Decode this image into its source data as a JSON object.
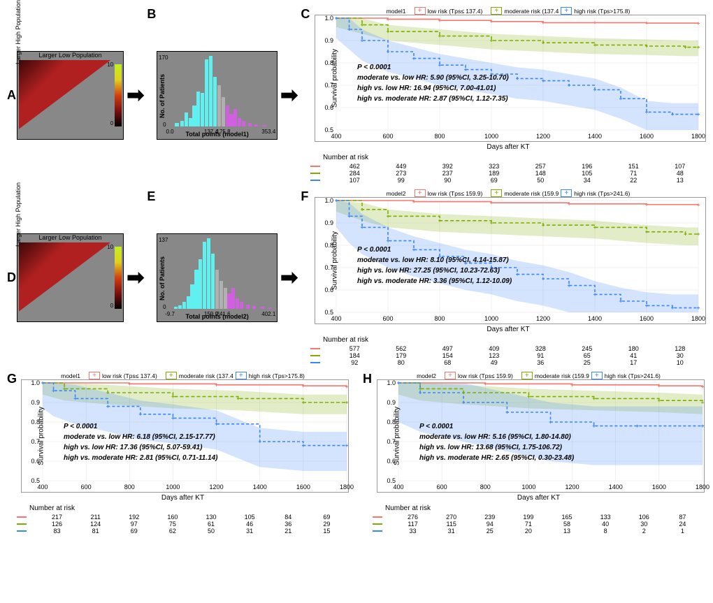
{
  "colors": {
    "low": "#f8766d",
    "moderate": "#7cae00",
    "high": "#3a86ff",
    "hist_low": "#60f0f0",
    "hist_mod": "#b0b0b0",
    "hist_high": "#d060e0",
    "heatmap_bg": "#888888",
    "triangle_fill": "#b02020",
    "grid": "#e6e6e6"
  },
  "arrows": {
    "glyph": "➡"
  },
  "panelA": {
    "label": "A",
    "type": "heatmap-triangle",
    "top_label": "Larger Low Population",
    "left_label": "Larger High Population",
    "colorbar": {
      "min": 0,
      "max": 10,
      "gradient": [
        "#000000",
        "#7a1010",
        "#d04010",
        "#e0d020",
        "#c0f020"
      ]
    }
  },
  "panelB": {
    "label": "B",
    "type": "histogram",
    "ylab": "No. of Patients",
    "xlab": "Total points (model1)",
    "ymax": 170,
    "x_ticks": [
      "0.0",
      "137.4",
      "175.8",
      "353.4"
    ],
    "bars": [
      {
        "x": 0.05,
        "h": 0.05,
        "c": "low"
      },
      {
        "x": 0.1,
        "h": 0.08,
        "c": "low"
      },
      {
        "x": 0.14,
        "h": 0.2,
        "c": "low"
      },
      {
        "x": 0.18,
        "h": 0.12,
        "c": "low"
      },
      {
        "x": 0.22,
        "h": 0.3,
        "c": "low"
      },
      {
        "x": 0.26,
        "h": 0.5,
        "c": "low"
      },
      {
        "x": 0.3,
        "h": 0.48,
        "c": "low"
      },
      {
        "x": 0.34,
        "h": 0.95,
        "c": "low"
      },
      {
        "x": 0.38,
        "h": 1.0,
        "c": "low"
      },
      {
        "x": 0.42,
        "h": 0.7,
        "c": "low"
      },
      {
        "x": 0.46,
        "h": 0.58,
        "c": "mod"
      },
      {
        "x": 0.5,
        "h": 0.42,
        "c": "mod"
      },
      {
        "x": 0.54,
        "h": 0.3,
        "c": "high"
      },
      {
        "x": 0.58,
        "h": 0.18,
        "c": "high"
      },
      {
        "x": 0.62,
        "h": 0.25,
        "c": "high"
      },
      {
        "x": 0.66,
        "h": 0.12,
        "c": "high"
      },
      {
        "x": 0.7,
        "h": 0.08,
        "c": "high"
      },
      {
        "x": 0.76,
        "h": 0.05,
        "c": "high"
      },
      {
        "x": 0.82,
        "h": 0.03,
        "c": "high"
      },
      {
        "x": 0.9,
        "h": 0.02,
        "c": "high"
      }
    ]
  },
  "panelC": {
    "label": "C",
    "model_label": "model1",
    "legend": {
      "low": "low risk (Tps≤ 137.4)",
      "moderate": "moderate risk (137.4<Tps≤175.8)",
      "high": "high risk (Tps>175.8)"
    },
    "ylab": "Survival probability",
    "xlab": "Days after KT",
    "ylim": [
      0.5,
      1.0
    ],
    "ytick_step": 0.1,
    "xlim": [
      400,
      1800
    ],
    "xtick_step": 200,
    "stats": {
      "p": "P < 0.0001",
      "l1": "moderate vs. low HR: 5.90 (95%CI, 3.25-10.70)",
      "l2": "high vs. low HR: 16.94 (95%CI, 7.00-41.01)",
      "l3": "high vs. moderate HR: 2.87 (95%CI, 1.12-7.35)"
    },
    "curves": {
      "low": [
        [
          400,
          1.0
        ],
        [
          600,
          0.995
        ],
        [
          800,
          0.99
        ],
        [
          1000,
          0.985
        ],
        [
          1200,
          0.98
        ],
        [
          1400,
          0.98
        ],
        [
          1600,
          0.978
        ],
        [
          1800,
          0.976
        ]
      ],
      "moderate": [
        [
          400,
          1.0
        ],
        [
          500,
          0.97
        ],
        [
          600,
          0.94
        ],
        [
          800,
          0.92
        ],
        [
          1000,
          0.9
        ],
        [
          1200,
          0.89
        ],
        [
          1400,
          0.88
        ],
        [
          1600,
          0.875
        ],
        [
          1750,
          0.87
        ],
        [
          1800,
          0.87
        ]
      ],
      "high": [
        [
          400,
          1.0
        ],
        [
          450,
          0.95
        ],
        [
          500,
          0.9
        ],
        [
          600,
          0.85
        ],
        [
          700,
          0.82
        ],
        [
          800,
          0.79
        ],
        [
          900,
          0.77
        ],
        [
          1000,
          0.75
        ],
        [
          1100,
          0.73
        ],
        [
          1200,
          0.72
        ],
        [
          1300,
          0.7
        ],
        [
          1400,
          0.68
        ],
        [
          1500,
          0.64
        ],
        [
          1600,
          0.58
        ],
        [
          1700,
          0.57
        ],
        [
          1800,
          0.57
        ]
      ]
    },
    "ci": {
      "moderate": {
        "upper": 0.03,
        "lower": 0.04
      },
      "high": {
        "upper": 0.05,
        "lower": 0.09
      }
    },
    "risk_label": "Number at risk",
    "risk": {
      "low": [
        462,
        449,
        392,
        323,
        257,
        196,
        151,
        107
      ],
      "moderate": [
        284,
        273,
        237,
        189,
        148,
        105,
        71,
        48
      ],
      "high": [
        107,
        99,
        90,
        69,
        50,
        34,
        22,
        13
      ]
    }
  },
  "panelD": {
    "label": "D",
    "type": "heatmap-triangle",
    "top_label": "Larger Low Population",
    "left_label": "Larger High Population",
    "colorbar": {
      "min": 0,
      "max": 10,
      "gradient": [
        "#000000",
        "#7a1010",
        "#d04010",
        "#e0d020",
        "#c0f020"
      ]
    }
  },
  "panelE": {
    "label": "E",
    "type": "histogram",
    "ylab": "No. of Patients",
    "xlab": "Total points (model2)",
    "ymax": 137,
    "x_ticks": [
      "-9.7",
      "159.9",
      "241.6",
      "402.1"
    ],
    "bars": [
      {
        "x": 0.04,
        "h": 0.03,
        "c": "low"
      },
      {
        "x": 0.08,
        "h": 0.05,
        "c": "low"
      },
      {
        "x": 0.12,
        "h": 0.1,
        "c": "low"
      },
      {
        "x": 0.16,
        "h": 0.18,
        "c": "low"
      },
      {
        "x": 0.2,
        "h": 0.35,
        "c": "low"
      },
      {
        "x": 0.24,
        "h": 0.55,
        "c": "low"
      },
      {
        "x": 0.28,
        "h": 0.7,
        "c": "low"
      },
      {
        "x": 0.32,
        "h": 0.95,
        "c": "low"
      },
      {
        "x": 0.36,
        "h": 1.0,
        "c": "low"
      },
      {
        "x": 0.4,
        "h": 0.78,
        "c": "low"
      },
      {
        "x": 0.44,
        "h": 0.55,
        "c": "mod"
      },
      {
        "x": 0.48,
        "h": 0.4,
        "c": "mod"
      },
      {
        "x": 0.52,
        "h": 0.3,
        "c": "mod"
      },
      {
        "x": 0.56,
        "h": 0.22,
        "c": "high"
      },
      {
        "x": 0.6,
        "h": 0.3,
        "c": "high"
      },
      {
        "x": 0.64,
        "h": 0.15,
        "c": "high"
      },
      {
        "x": 0.68,
        "h": 0.1,
        "c": "high"
      },
      {
        "x": 0.74,
        "h": 0.06,
        "c": "high"
      },
      {
        "x": 0.8,
        "h": 0.04,
        "c": "high"
      },
      {
        "x": 0.88,
        "h": 0.03,
        "c": "high"
      },
      {
        "x": 0.95,
        "h": 0.02,
        "c": "high"
      }
    ]
  },
  "panelF": {
    "label": "F",
    "model_label": "model2",
    "legend": {
      "low": "low risk (Tps≤ 159.9)",
      "moderate": "moderate risk (159.9<Tps≤241.6)",
      "high": "high risk (Tps>241.6)"
    },
    "ylab": "Survival probability",
    "xlab": "Days after KT",
    "ylim": [
      0.5,
      1.0
    ],
    "ytick_step": 0.1,
    "xlim": [
      400,
      1800
    ],
    "xtick_step": 200,
    "stats": {
      "p": "P < 0.0001",
      "l1": "moderate vs. low HR: 8.10 (95%CI, 4.14-15.87)",
      "l2": "high vs. low HR: 27.25 (95%CI, 10.23-72.63)",
      "l3": "high vs. moderate HR: 3.36 (95%CI, 1.12-10.09)"
    },
    "curves": {
      "low": [
        [
          400,
          1.0
        ],
        [
          700,
          0.995
        ],
        [
          1000,
          0.99
        ],
        [
          1300,
          0.985
        ],
        [
          1600,
          0.982
        ],
        [
          1800,
          0.98
        ]
      ],
      "moderate": [
        [
          400,
          1.0
        ],
        [
          500,
          0.96
        ],
        [
          600,
          0.93
        ],
        [
          800,
          0.91
        ],
        [
          1000,
          0.9
        ],
        [
          1200,
          0.89
        ],
        [
          1400,
          0.88
        ],
        [
          1600,
          0.86
        ],
        [
          1750,
          0.85
        ],
        [
          1800,
          0.85
        ]
      ],
      "high": [
        [
          400,
          1.0
        ],
        [
          450,
          0.93
        ],
        [
          500,
          0.88
        ],
        [
          600,
          0.82
        ],
        [
          700,
          0.78
        ],
        [
          800,
          0.75
        ],
        [
          900,
          0.72
        ],
        [
          1000,
          0.7
        ],
        [
          1100,
          0.67
        ],
        [
          1200,
          0.65
        ],
        [
          1300,
          0.62
        ],
        [
          1400,
          0.58
        ],
        [
          1500,
          0.55
        ],
        [
          1600,
          0.53
        ],
        [
          1700,
          0.52
        ],
        [
          1800,
          0.52
        ]
      ]
    },
    "ci": {
      "moderate": {
        "upper": 0.03,
        "lower": 0.05
      },
      "high": {
        "upper": 0.06,
        "lower": 0.12
      }
    },
    "risk_label": "Number at risk",
    "risk": {
      "low": [
        577,
        562,
        497,
        409,
        328,
        245,
        180,
        128
      ],
      "moderate": [
        184,
        179,
        154,
        123,
        91,
        65,
        41,
        30
      ],
      "high": [
        92,
        80,
        68,
        49,
        36,
        25,
        17,
        10
      ]
    }
  },
  "panelG": {
    "label": "G",
    "model_label": "model1",
    "legend": {
      "low": "low risk (Tps≤ 137.4)",
      "moderate": "moderate risk (137.4<Tps≤175.8)",
      "high": "high risk (Tps>175.8)"
    },
    "ylab": "Survival probability",
    "xlab": "Days after KT",
    "ylim": [
      0.5,
      1.0
    ],
    "ytick_step": 0.1,
    "xlim": [
      400,
      1800
    ],
    "xtick_step": 200,
    "stats": {
      "p": "P < 0.0001",
      "l1": "moderate vs. low HR: 6.18 (95%CI, 2.15-17.77)",
      "l2": "high vs. low HR: 17.36 (95%CI, 5.07-59.41)",
      "l3": "high vs. moderate HR: 2.81 (95%CI, 0.71-11.14)"
    },
    "curves": {
      "low": [
        [
          400,
          1.0
        ],
        [
          800,
          0.995
        ],
        [
          1200,
          0.99
        ],
        [
          1600,
          0.985
        ],
        [
          1800,
          0.98
        ]
      ],
      "moderate": [
        [
          400,
          1.0
        ],
        [
          500,
          0.97
        ],
        [
          700,
          0.95
        ],
        [
          1000,
          0.93
        ],
        [
          1300,
          0.92
        ],
        [
          1600,
          0.9
        ],
        [
          1800,
          0.9
        ]
      ],
      "high": [
        [
          400,
          1.0
        ],
        [
          450,
          0.96
        ],
        [
          550,
          0.92
        ],
        [
          700,
          0.88
        ],
        [
          850,
          0.84
        ],
        [
          1000,
          0.82
        ],
        [
          1200,
          0.79
        ],
        [
          1400,
          0.7
        ],
        [
          1600,
          0.68
        ],
        [
          1800,
          0.68
        ]
      ]
    },
    "ci": {
      "moderate": {
        "upper": 0.04,
        "lower": 0.06
      },
      "high": {
        "upper": 0.07,
        "lower": 0.13
      }
    },
    "risk_label": "Number at risk",
    "risk": {
      "low": [
        217,
        211,
        192,
        160,
        130,
        105,
        84,
        69
      ],
      "moderate": [
        126,
        124,
        97,
        75,
        61,
        46,
        36,
        29
      ],
      "high": [
        83,
        81,
        69,
        62,
        50,
        31,
        21,
        15
      ]
    }
  },
  "panelH": {
    "label": "H",
    "model_label": "model2",
    "legend": {
      "low": "low risk (Tps≤ 159.9)",
      "moderate": "moderate risk (159.9<Tps≤241.6)",
      "high": "high risk (Tps>241.6)"
    },
    "ylab": "Survival probability",
    "xlab": "Days after KT",
    "ylim": [
      0.5,
      1.0
    ],
    "ytick_step": 0.1,
    "xlim": [
      400,
      1800
    ],
    "xtick_step": 200,
    "stats": {
      "p": "P < 0.0001",
      "l1": "moderate vs. low HR: 5.16 (95%CI, 1.80-14.80)",
      "l2": "high vs. low HR: 13.68 (95%CI, 1.75-106.72)",
      "l3": "high vs. moderate HR: 2.65 (95%CI, 0.30-23.48)"
    },
    "curves": {
      "low": [
        [
          400,
          1.0
        ],
        [
          800,
          0.995
        ],
        [
          1200,
          0.99
        ],
        [
          1600,
          0.985
        ],
        [
          1800,
          0.98
        ]
      ],
      "moderate": [
        [
          400,
          1.0
        ],
        [
          500,
          0.97
        ],
        [
          700,
          0.95
        ],
        [
          1000,
          0.93
        ],
        [
          1300,
          0.92
        ],
        [
          1600,
          0.91
        ],
        [
          1800,
          0.9
        ]
      ],
      "high": [
        [
          400,
          1.0
        ],
        [
          500,
          0.95
        ],
        [
          700,
          0.9
        ],
        [
          900,
          0.85
        ],
        [
          1100,
          0.8
        ],
        [
          1300,
          0.78
        ],
        [
          1500,
          0.78
        ],
        [
          1800,
          0.78
        ]
      ]
    },
    "ci": {
      "moderate": {
        "upper": 0.04,
        "lower": 0.06
      },
      "high": {
        "upper": 0.1,
        "lower": 0.2
      }
    },
    "risk_label": "Number at risk",
    "risk": {
      "low": [
        276,
        270,
        239,
        199,
        165,
        133,
        106,
        87
      ],
      "moderate": [
        117,
        115,
        94,
        71,
        58,
        40,
        30,
        24
      ],
      "high": [
        33,
        31,
        25,
        20,
        13,
        8,
        2,
        1
      ]
    }
  }
}
